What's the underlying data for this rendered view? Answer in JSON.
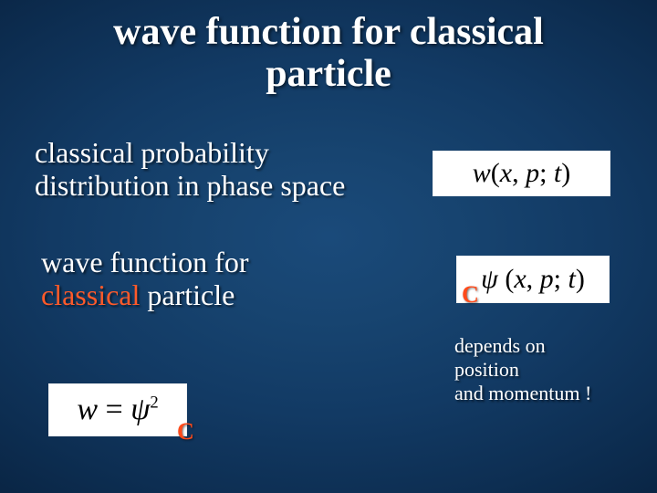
{
  "colors": {
    "bg_gradient_inner": "#1a4a7a",
    "bg_gradient_outer": "#041122",
    "text": "#ffffff",
    "accent": "#ff5a2a",
    "formula_bg": "#ffffff",
    "formula_text": "#000000"
  },
  "title": {
    "line1": "wave function for classical",
    "line2": "particle",
    "fontsize": 42
  },
  "block1": {
    "line1": "classical probability",
    "line2": "distribution in phase space",
    "fontsize": 32
  },
  "block2": {
    "line1": "wave function for",
    "accent_word": "classical",
    "line2_rest": " particle",
    "fontsize": 32
  },
  "formula1": {
    "text": "w(x, p; t)",
    "fontsize": 30
  },
  "formula2": {
    "text": "ψ (x, p; t)",
    "fontsize": 30
  },
  "formula3": {
    "text": "w = ψ²",
    "fontsize": 34
  },
  "subscript_c": {
    "text": "C",
    "fontsize": 26
  },
  "depends": {
    "line1": "depends on",
    "line2": "position",
    "line3": "and momentum !",
    "fontsize": 22
  }
}
